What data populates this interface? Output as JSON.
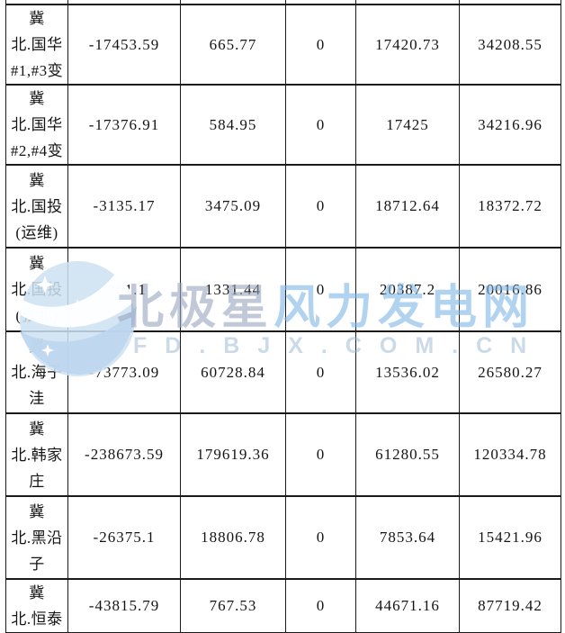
{
  "watermark": {
    "brand_text_gray": "北极星",
    "brand_text_blue": "风力发电网",
    "domain_text": "FD.BJX.COM.CN",
    "colors": {
      "brand_gray": "#9ba8c0",
      "brand_blue": "#7eb5e6",
      "domain": "#98b6d4",
      "logo_blue": "#cde0f2",
      "logo_blue_dark": "#bcd6ee"
    }
  },
  "table": {
    "rows": [
      {
        "name": "冀北.国华#1,#3变",
        "name_lines": [
          "冀",
          "北.国华",
          "#1,#3变"
        ],
        "values": [
          "-17453.59",
          "665.77",
          "0",
          "17420.73",
          "34208.55"
        ]
      },
      {
        "name": "冀北.国华#2,#4变",
        "name_lines": [
          "冀",
          "北.国华",
          "#2,#4变"
        ],
        "values": [
          "-17376.91",
          "584.95",
          "0",
          "17425",
          "34216.96"
        ]
      },
      {
        "name": "冀北.国投(运维)",
        "name_lines": [
          "冀",
          "北.国投",
          "(运维)"
        ],
        "values": [
          "-3135.17",
          "3475.09",
          "0",
          "18712.64",
          "18372.72"
        ]
      },
      {
        "name": "冀北.国投(张北)",
        "name_lines": [
          "冀",
          "北.国投",
          "(张北)"
        ],
        "values": [
          "-961.1",
          "1331.44",
          "0",
          "20387.2",
          "20016.86"
        ]
      },
      {
        "name": "冀北.海子洼",
        "name_lines": [
          "冀",
          "北.海子",
          "洼"
        ],
        "values": [
          "-73773.09",
          "60728.84",
          "0",
          "13536.02",
          "26580.27"
        ]
      },
      {
        "name": "冀北.韩家庄",
        "name_lines": [
          "冀",
          "北.韩家",
          "庄"
        ],
        "values": [
          "-238673.59",
          "179619.36",
          "0",
          "61280.55",
          "120334.78"
        ]
      },
      {
        "name": "冀北.黑沿子",
        "name_lines": [
          "冀",
          "北.黑沿",
          "子"
        ],
        "values": [
          "-26375.1",
          "18806.78",
          "0",
          "7853.64",
          "15421.96"
        ]
      },
      {
        "name": "冀北.恒泰",
        "name_lines": [
          "冀",
          "北.恒泰"
        ],
        "values": [
          "-43815.79",
          "767.53",
          "0",
          "44671.16",
          "87719.42"
        ]
      }
    ]
  }
}
